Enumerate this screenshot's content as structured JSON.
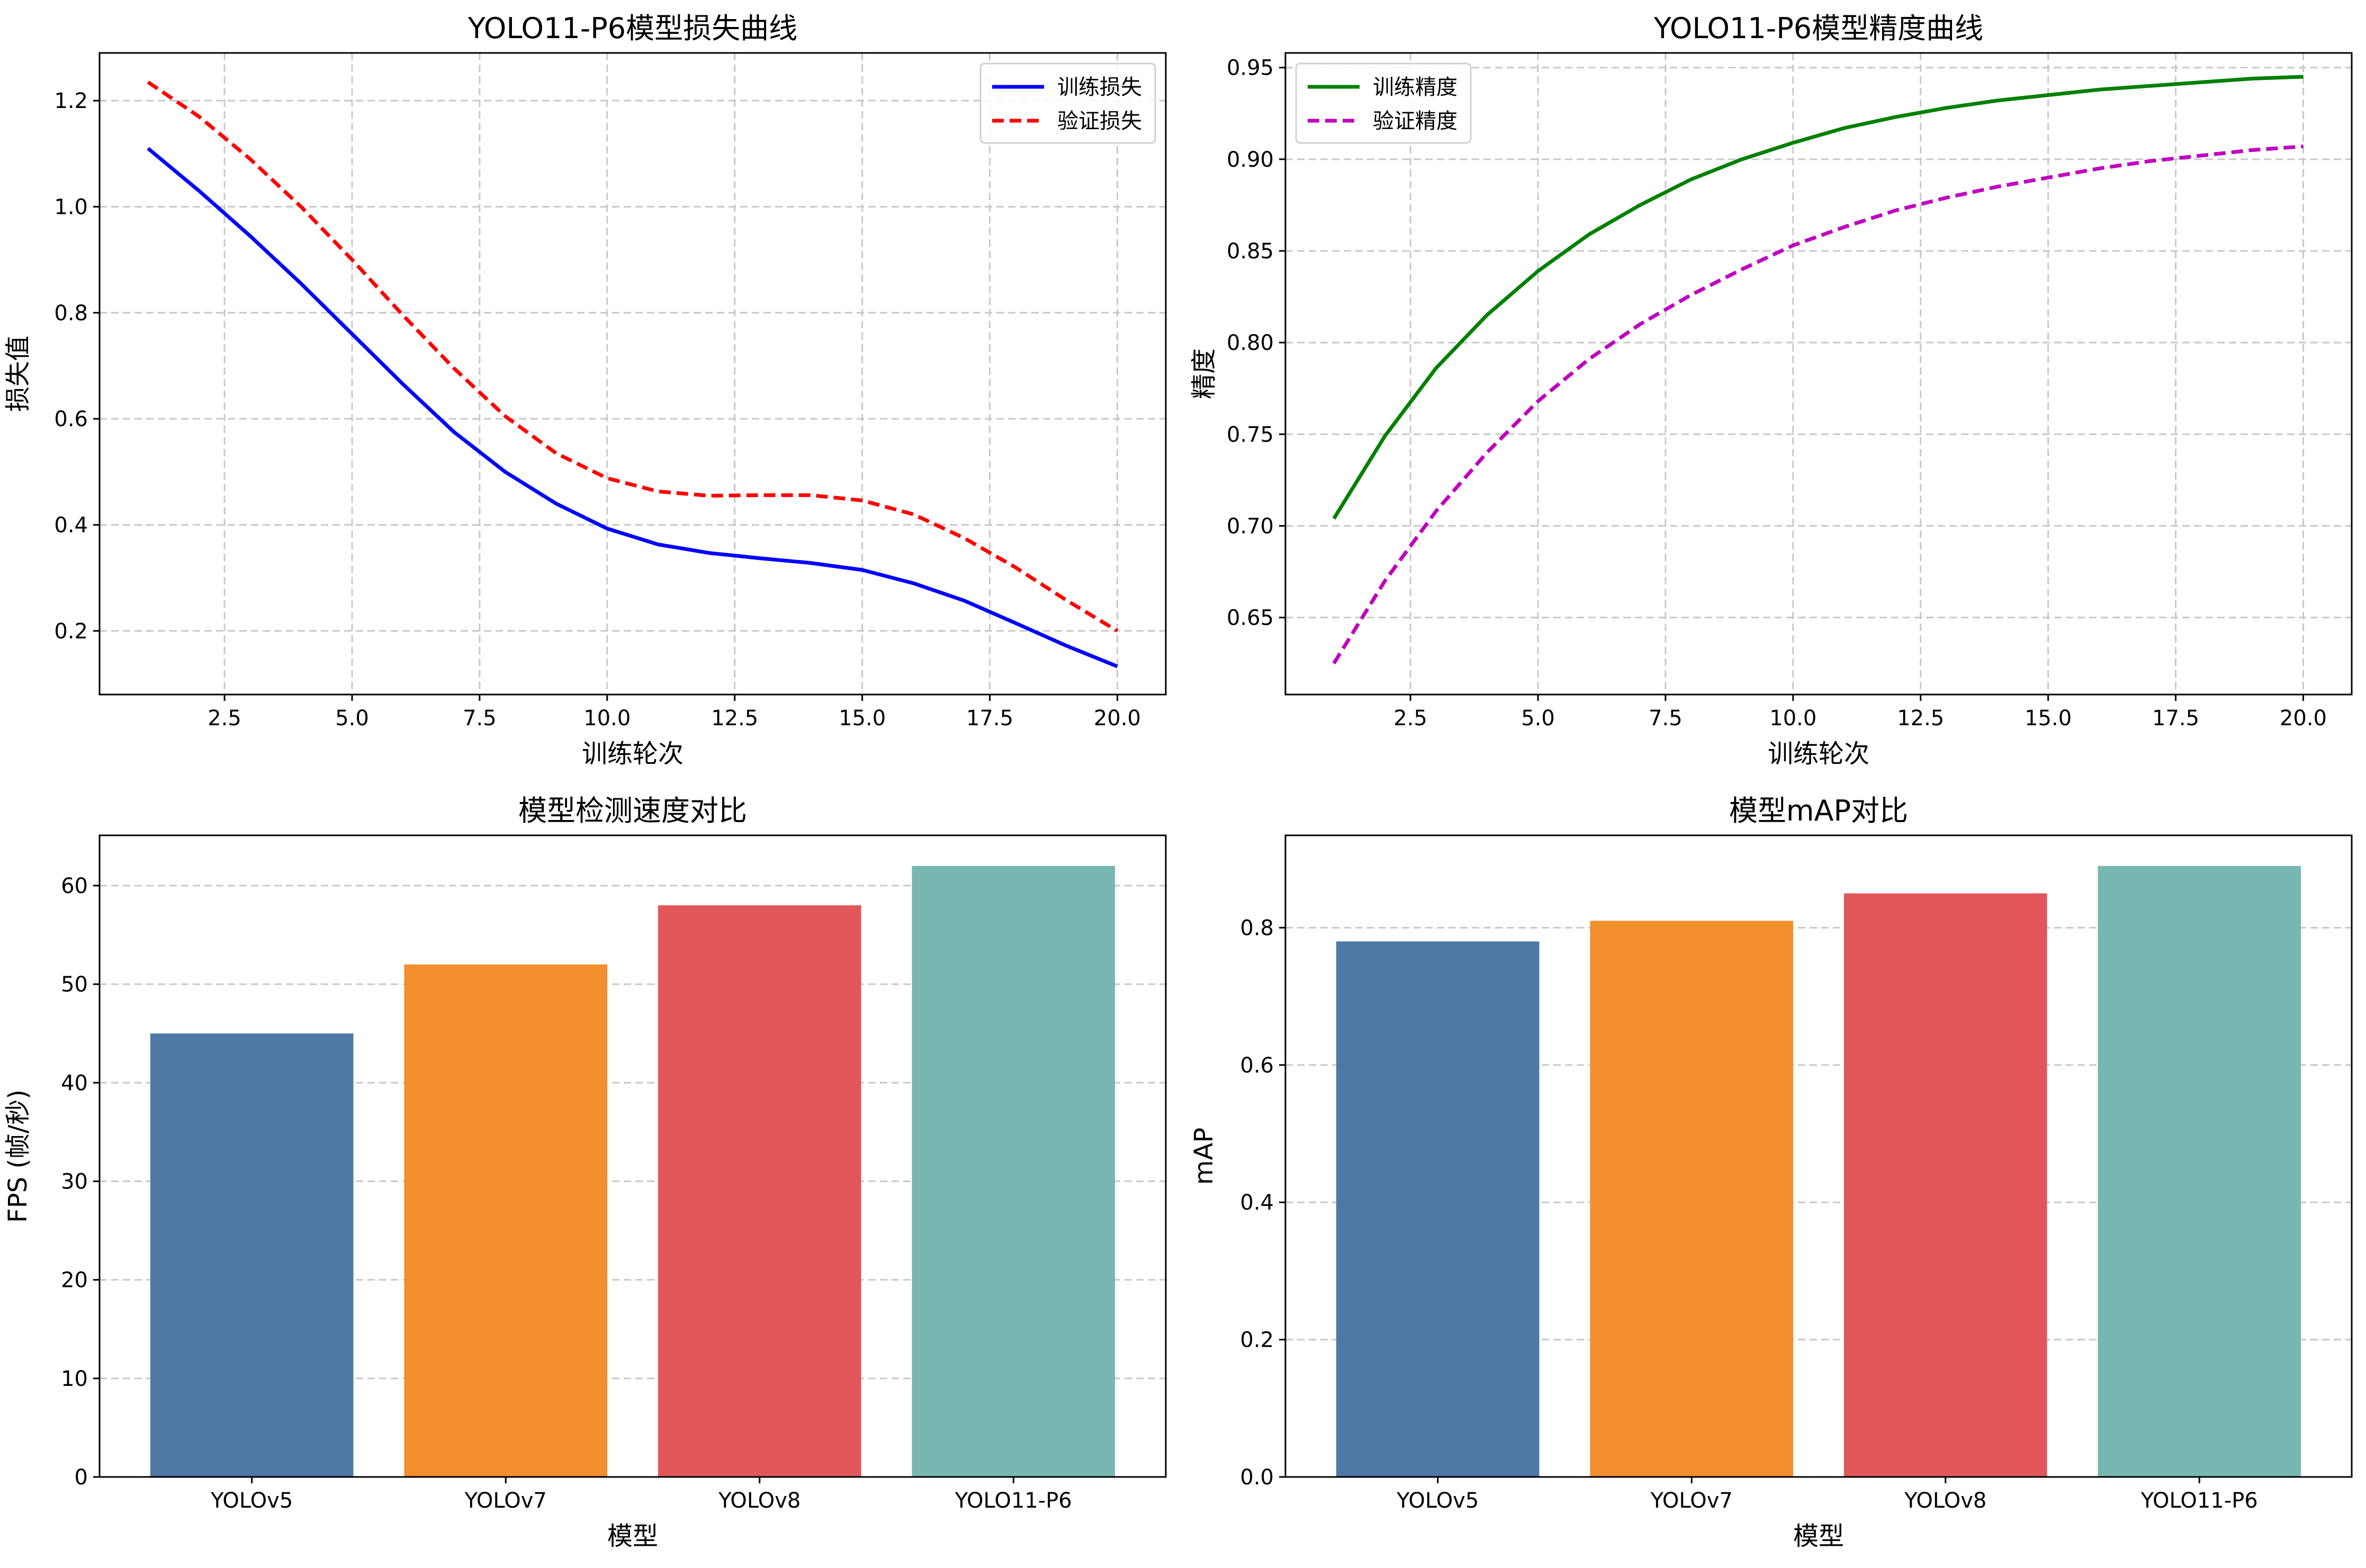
{
  "chart_data": [
    {
      "type": "line",
      "title": "YOLO11-P6模型损失曲线",
      "xlabel": "训练轮次",
      "ylabel": "损失值",
      "xlim": [
        0.05,
        20.95
      ],
      "ylim": [
        0.08,
        1.29
      ],
      "xticks": [
        "2.5",
        "5.0",
        "7.5",
        "10.0",
        "12.5",
        "15.0",
        "17.5",
        "20.0"
      ],
      "yticks": [
        "0.2",
        "0.4",
        "0.6",
        "0.8",
        "1.0",
        "1.2"
      ],
      "grid": true,
      "legend_position": "upper right",
      "x": [
        1,
        2,
        3,
        4,
        5,
        6,
        7,
        8,
        9,
        10,
        11,
        12,
        13,
        14,
        15,
        16,
        17,
        18,
        19,
        20
      ],
      "series": [
        {
          "name": "训练损失",
          "color": "#0000ff",
          "style": "solid",
          "values": [
            1.11,
            1.03,
            0.945,
            0.855,
            0.76,
            0.665,
            0.575,
            0.5,
            0.44,
            0.393,
            0.363,
            0.347,
            0.337,
            0.328,
            0.315,
            0.29,
            0.257,
            0.215,
            0.172,
            0.133
          ]
        },
        {
          "name": "验证损失",
          "color": "#ff0000",
          "style": "dashed",
          "values": [
            1.235,
            1.17,
            1.09,
            1.0,
            0.9,
            0.795,
            0.695,
            0.605,
            0.535,
            0.488,
            0.463,
            0.455,
            0.456,
            0.456,
            0.446,
            0.42,
            0.375,
            0.32,
            0.258,
            0.2
          ]
        }
      ]
    },
    {
      "type": "line",
      "title": "YOLO11-P6模型精度曲线",
      "xlabel": "训练轮次",
      "ylabel": "精度",
      "xlim": [
        0.05,
        20.95
      ],
      "ylim": [
        0.608,
        0.958
      ],
      "xticks": [
        "2.5",
        "5.0",
        "7.5",
        "10.0",
        "12.5",
        "15.0",
        "17.5",
        "20.0"
      ],
      "yticks": [
        "0.65",
        "0.70",
        "0.75",
        "0.80",
        "0.85",
        "0.90",
        "0.95"
      ],
      "grid": true,
      "legend_position": "upper left",
      "x": [
        1,
        2,
        3,
        4,
        5,
        6,
        7,
        8,
        9,
        10,
        11,
        12,
        13,
        14,
        15,
        16,
        17,
        18,
        19,
        20
      ],
      "series": [
        {
          "name": "训练精度",
          "color": "#008000",
          "style": "solid",
          "values": [
            0.704,
            0.749,
            0.786,
            0.815,
            0.839,
            0.859,
            0.875,
            0.889,
            0.9,
            0.909,
            0.917,
            0.923,
            0.928,
            0.932,
            0.935,
            0.938,
            0.94,
            0.942,
            0.944,
            0.945
          ]
        },
        {
          "name": "验证精度",
          "color": "#bf00bf",
          "style": "dashed",
          "values": [
            0.625,
            0.67,
            0.708,
            0.74,
            0.768,
            0.791,
            0.81,
            0.826,
            0.84,
            0.853,
            0.863,
            0.872,
            0.879,
            0.885,
            0.89,
            0.895,
            0.899,
            0.902,
            0.905,
            0.907
          ]
        }
      ]
    },
    {
      "type": "bar",
      "title": "模型检测速度对比",
      "xlabel": "模型",
      "ylabel": "FPS (帧/秒)",
      "ylim": [
        0,
        65.1
      ],
      "yticks": [
        "0",
        "10",
        "20",
        "30",
        "40",
        "50",
        "60"
      ],
      "grid": true,
      "categories": [
        "YOLOv5",
        "YOLOv7",
        "YOLOv8",
        "YOLO11-P6"
      ],
      "values": [
        45,
        52,
        58,
        62
      ],
      "colors": [
        "#4e79a7",
        "#f28e2b",
        "#e15759",
        "#76b7b2"
      ]
    },
    {
      "type": "bar",
      "title": "模型mAP对比",
      "xlabel": "模型",
      "ylabel": "mAP",
      "ylim": [
        0,
        0.9345
      ],
      "yticks": [
        "0.0",
        "0.2",
        "0.4",
        "0.6",
        "0.8"
      ],
      "grid": true,
      "categories": [
        "YOLOv5",
        "YOLOv7",
        "YOLOv8",
        "YOLO11-P6"
      ],
      "values": [
        0.78,
        0.81,
        0.85,
        0.89
      ],
      "colors": [
        "#4e79a7",
        "#f28e2b",
        "#e15759",
        "#76b7b2"
      ]
    }
  ]
}
